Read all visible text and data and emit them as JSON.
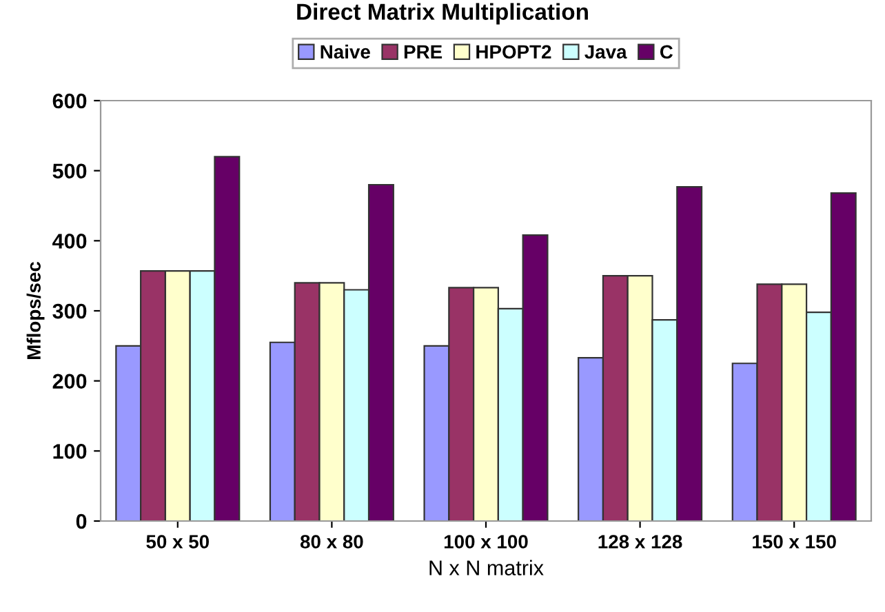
{
  "chart_data": {
    "type": "bar",
    "title": "Direct Matrix Multiplication",
    "xlabel": "N x N matrix",
    "ylabel": "Mflops/sec",
    "categories": [
      "50 x 50",
      "80 x 80",
      "100 x 100",
      "128 x 128",
      "150 x 150"
    ],
    "series": [
      {
        "name": "Naive",
        "color": "#9999ff",
        "values": [
          250,
          255,
          250,
          233,
          225
        ]
      },
      {
        "name": "PRE",
        "color": "#993366",
        "values": [
          357,
          340,
          333,
          350,
          338
        ]
      },
      {
        "name": "HPOPT2",
        "color": "#ffffcc",
        "values": [
          357,
          340,
          333,
          350,
          338
        ]
      },
      {
        "name": "Java",
        "color": "#ccffff",
        "values": [
          357,
          330,
          303,
          287,
          298
        ]
      },
      {
        "name": "C",
        "color": "#660066",
        "values": [
          520,
          480,
          408,
          477,
          468
        ]
      }
    ],
    "ylim": [
      0,
      600
    ],
    "yticks": [
      0,
      100,
      200,
      300,
      400,
      500,
      600
    ],
    "grid": false,
    "legend": "top"
  }
}
